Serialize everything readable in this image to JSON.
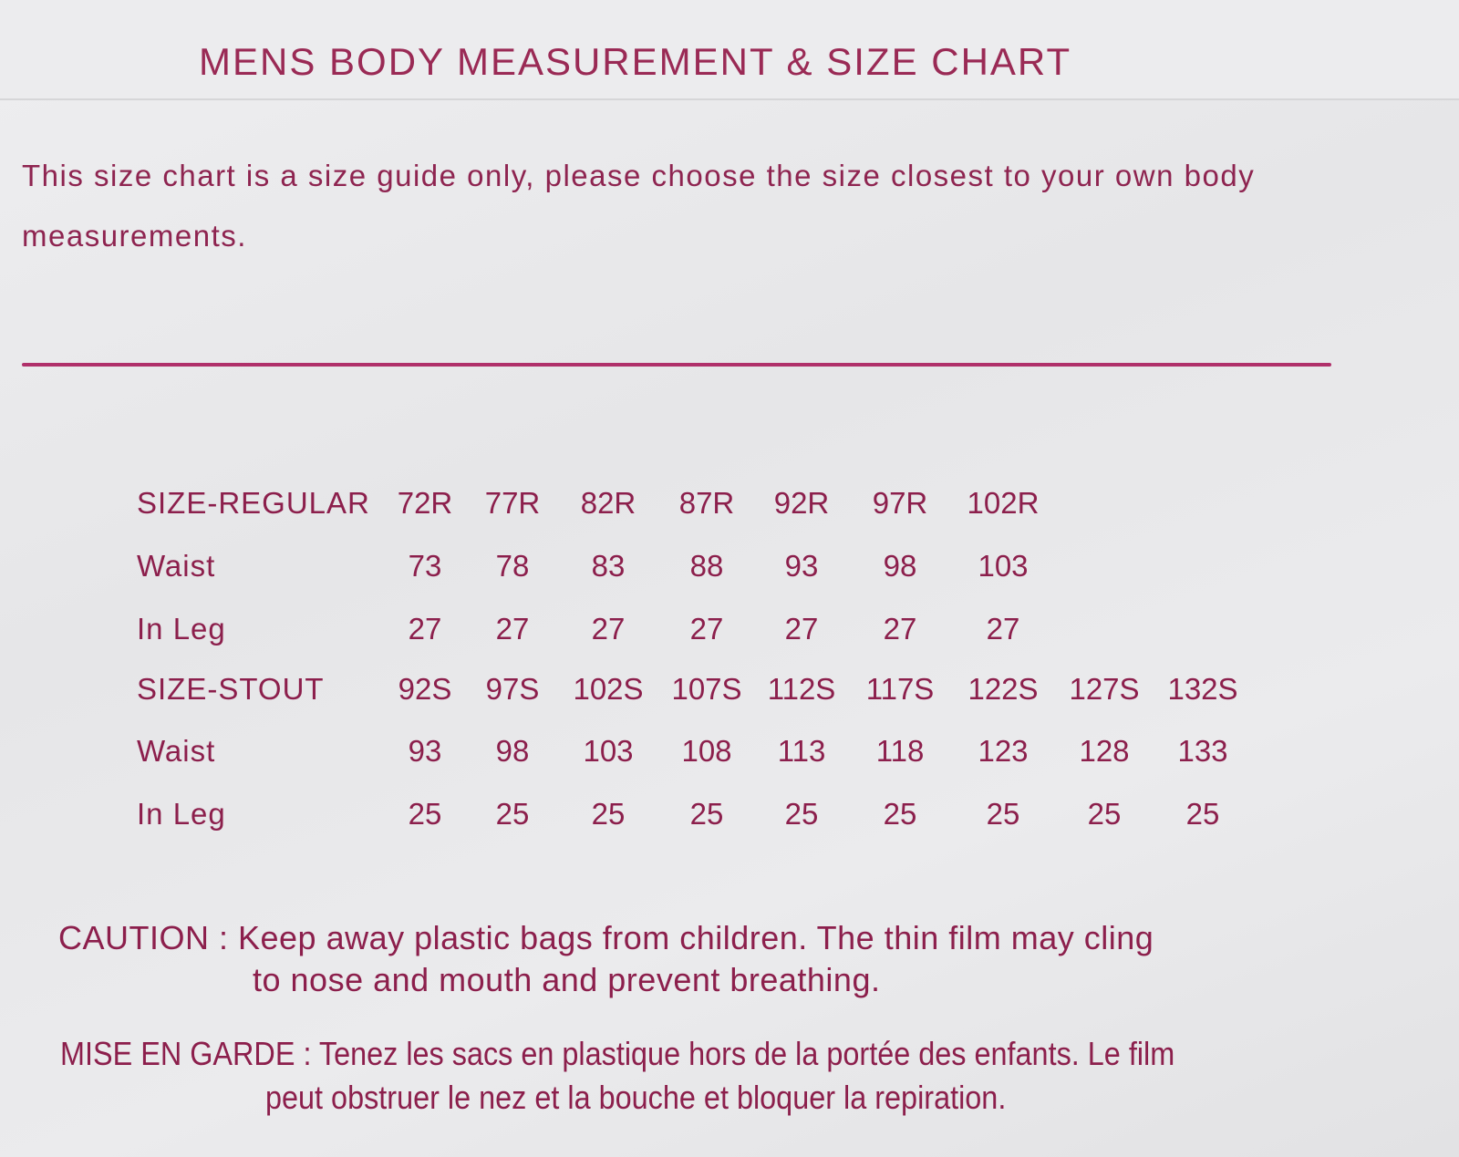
{
  "title": "MENS BODY MEASUREMENT & SIZE CHART",
  "intro": "This size chart is a size guide only, please choose the size closest to your own body measurements.",
  "colors": {
    "ink": "#8c1f4c",
    "background": "#e8e8ea",
    "rule": "#b0306a"
  },
  "regular": {
    "label": "SIZE-REGULAR",
    "sizes": [
      "72R",
      "77R",
      "82R",
      "87R",
      "92R",
      "97R",
      "102R"
    ],
    "waist_label": "Waist",
    "waist": [
      "73",
      "78",
      "83",
      "88",
      "93",
      "98",
      "103"
    ],
    "inleg_label": "In Leg",
    "inleg": [
      "27",
      "27",
      "27",
      "27",
      "27",
      "27",
      "27"
    ]
  },
  "stout": {
    "label": "SIZE-STOUT",
    "sizes": [
      "92S",
      "97S",
      "102S",
      "107S",
      "112S",
      "117S",
      "122S",
      "127S",
      "132S"
    ],
    "waist_label": "Waist",
    "waist": [
      "93",
      "98",
      "103",
      "108",
      "113",
      "118",
      "123",
      "128",
      "133"
    ],
    "inleg_label": "In Leg",
    "inleg": [
      "25",
      "25",
      "25",
      "25",
      "25",
      "25",
      "25",
      "25",
      "25"
    ]
  },
  "caution": {
    "line1": "CAUTION : Keep away plastic bags from children. The thin film may cling",
    "line2": "to nose and mouth and prevent breathing."
  },
  "mise_en_garde": {
    "line1": "MISE EN GARDE : Tenez les sacs en plastique hors de la portée des enfants. Le film",
    "line2": "peut obstruer le nez et la bouche et bloquer la repiration."
  }
}
